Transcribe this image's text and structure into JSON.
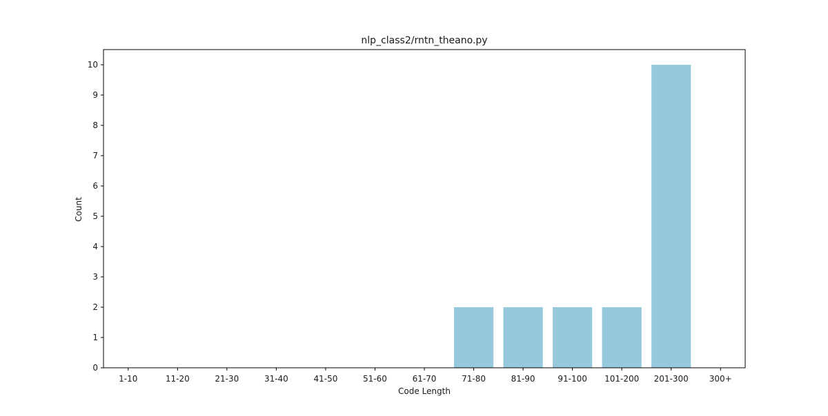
{
  "chart_data": {
    "type": "bar",
    "title": "nlp_class2/rntn_theano.py",
    "xlabel": "Code Length",
    "ylabel": "Count",
    "categories": [
      "1-10",
      "11-20",
      "21-30",
      "31-40",
      "41-50",
      "51-60",
      "61-70",
      "71-80",
      "81-90",
      "91-100",
      "101-200",
      "201-300",
      "300+"
    ],
    "values": [
      0,
      0,
      0,
      0,
      0,
      0,
      0,
      2,
      2,
      2,
      2,
      10,
      0
    ],
    "ylim": [
      0,
      10.5
    ],
    "yticks": [
      0,
      1,
      2,
      3,
      4,
      5,
      6,
      7,
      8,
      9,
      10
    ],
    "grid": false,
    "bar_color": "#96c9dc"
  }
}
